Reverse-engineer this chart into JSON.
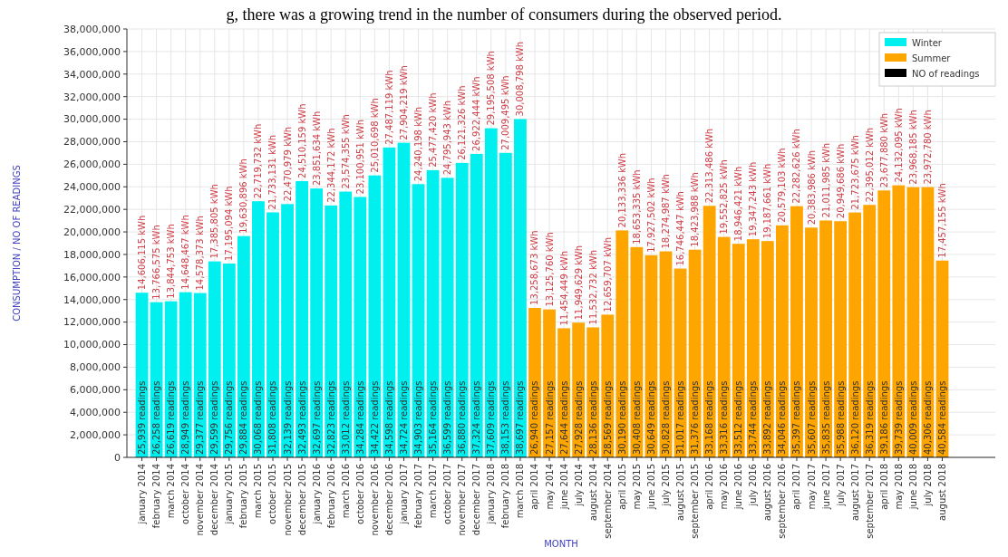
{
  "chart_data": {
    "type": "bar",
    "xlabel": "MONTH",
    "ylabel": "CONSUMPTION / NO OF READINGS",
    "annotations": [
      "g, there was a growing trend in the number of consumers during the  observed period."
    ],
    "categories": [
      "january 2014",
      "february 2014",
      "march 2014",
      "october 2014",
      "november 2014",
      "december 2014",
      "january 2015",
      "february 2015",
      "march 2015",
      "october 2015",
      "november 2015",
      "december 2015",
      "january 2016",
      "february 2016",
      "march 2016",
      "october 2016",
      "november 2016",
      "december 2016",
      "january 2017",
      "february 2017",
      "march 2017",
      "october 2017",
      "november 2017",
      "december 2017",
      "january 2018",
      "february 2018",
      "march 2018",
      "april 2014",
      "may 2014",
      "june 2014",
      "july 2014",
      "august 2014",
      "september 2014",
      "april 2015",
      "may 2015",
      "june 2015",
      "july 2015",
      "august 2015",
      "september 2015",
      "april 2016",
      "may 2016",
      "june 2016",
      "july 2016",
      "august 2016",
      "september 2016",
      "april 2017",
      "may 2017",
      "june 2017",
      "july 2017",
      "august 2017",
      "september 2017",
      "april 2018",
      "may 2018",
      "june 2018",
      "july 2018",
      "august 2018"
    ],
    "series": [
      {
        "name": "Winter",
        "color": "#00f0f0",
        "values": [
          14606115,
          13766575,
          13844753,
          14648467,
          14578373,
          17385805,
          17195094,
          19630896,
          22719732,
          21733131,
          22470979,
          24510159,
          23851634,
          22344172,
          23574355,
          23100951,
          25010698,
          27487119,
          27904219,
          24240198,
          25477420,
          24795943,
          26121326,
          26922444,
          29195508,
          27009495,
          30008798,
          null,
          null,
          null,
          null,
          null,
          null,
          null,
          null,
          null,
          null,
          null,
          null,
          null,
          null,
          null,
          null,
          null,
          null,
          null,
          null,
          null,
          null,
          null,
          null,
          null,
          null,
          null,
          null,
          null
        ],
        "value_labels": [
          "14,606,115 kWh",
          "13,766,575 kWh",
          "13,844,753 kWh",
          "14,648,467 kWh",
          "14,578,373 kWh",
          "17,385,805 kWh",
          "17,195,094 kWh",
          "19,630,896 kWh",
          "22,719,732 kWh",
          "21,733,131 kWh",
          "22,470,979 kWh",
          "24,510,159 kWh",
          "23,851,634 kWh",
          "22,344,172 kWh",
          "23,574,355 kWh",
          "23,100,951 kWh",
          "25,010,698 kWh",
          "27,487,119 kWh",
          "27,904,219 kWh",
          "24,240,198 kWh",
          "25,477,420 kWh",
          "24,795,943 kWh",
          "26,121,326 kWh",
          "26,922,444 kWh",
          "29,195,508 kWh",
          "27,009,495 kWh",
          "30,008,798 kWh",
          null,
          null,
          null,
          null,
          null,
          null,
          null,
          null,
          null,
          null,
          null,
          null,
          null,
          null,
          null,
          null,
          null,
          null,
          null,
          null,
          null,
          null,
          null,
          null,
          null,
          null,
          null,
          null,
          null
        ]
      },
      {
        "name": "Summer",
        "color": "#ffa500",
        "values": [
          null,
          null,
          null,
          null,
          null,
          null,
          null,
          null,
          null,
          null,
          null,
          null,
          null,
          null,
          null,
          null,
          null,
          null,
          null,
          null,
          null,
          null,
          null,
          null,
          null,
          null,
          null,
          13258673,
          13125760,
          11454449,
          11949629,
          11532732,
          12659707,
          20133336,
          18653335,
          17927502,
          18274987,
          16746447,
          18423988,
          22313486,
          19552825,
          18946421,
          19347243,
          19187661,
          20579103,
          22282626,
          20383986,
          21011985,
          20949686,
          21723675,
          22395012,
          23677880,
          24132095,
          23968185,
          23972780,
          17457155
        ],
        "value_labels": [
          null,
          null,
          null,
          null,
          null,
          null,
          null,
          null,
          null,
          null,
          null,
          null,
          null,
          null,
          null,
          null,
          null,
          null,
          null,
          null,
          null,
          null,
          null,
          null,
          null,
          null,
          null,
          "13,258,673 kWh",
          "13,125,760 kWh",
          "11,454,449 kWh",
          "11,949,629 kWh",
          "11,532,732 kWh",
          "12,659,707 kWh",
          "20,133,336 kWh",
          "18,653,335 kWh",
          "17,927,502 kWh",
          "18,274,987 kWh",
          "16,746,447 kWh",
          "18,423,988 kWh",
          "22,313,486 kWh",
          "19,552,825 kWh",
          "18,946,421 kWh",
          "19,347,243 kWh",
          "19,187,661 kWh",
          "20,579,103 kWh",
          "22,282,626 kWh",
          "20,383,986 kWh",
          "21,011,985 kWh",
          "20,949,686 kWh",
          "21,723,675 kWh",
          "22,395,012 kWh",
          "23,677,880 kWh",
          "24,132,095 kWh",
          "23,968,185 kWh",
          "23,972,780 kWh",
          "17,457,155 kWh"
        ]
      },
      {
        "name": "NO of readings",
        "color": "#000000",
        "values": [
          25939,
          26258,
          26619,
          28949,
          29377,
          29599,
          29756,
          29884,
          30068,
          31808,
          32139,
          32493,
          32697,
          32823,
          33012,
          34284,
          34422,
          34598,
          34724,
          34903,
          35164,
          36599,
          36880,
          37324,
          37609,
          38153,
          38697,
          26940,
          27157,
          27644,
          27928,
          28136,
          28569,
          30190,
          30408,
          30649,
          30828,
          31017,
          31376,
          33168,
          33316,
          33512,
          33744,
          33892,
          34046,
          35397,
          35607,
          35835,
          35988,
          36120,
          36319,
          39186,
          39739,
          40009,
          40306,
          40584
        ],
        "value_labels": [
          "25,939 readings",
          "26,258 readings",
          "26,619 readings",
          "28,949 readings",
          "29,377 readings",
          "29,599 readings",
          "29,756 readings",
          "29,884 readings",
          "30,068 readings",
          "31,808 readings",
          "32,139 readings",
          "32,493 readings",
          "32,697 readings",
          "32,823 readings",
          "33,012 readings",
          "34,284 readings",
          "34,422 readings",
          "34,598 readings",
          "34,724 readings",
          "34,903 readings",
          "35,164 readings",
          "36,599 readings",
          "36,880 readings",
          "37,324 readings",
          "37,609 readings",
          "38,153 readings",
          "38,697 readings",
          "26,940 readings",
          "27,157 readings",
          "27,644 readings",
          "27,928 readings",
          "28,136 readings",
          "28,569 readings",
          "30,190 readings",
          "30,408 readings",
          "30,649 readings",
          "30,828 readings",
          "31,017 readings",
          "31,376 readings",
          "33,168 readings",
          "33,316 readings",
          "33,512 readings",
          "33,744 readings",
          "33,892 readings",
          "34,046 readings",
          "35,397 readings",
          "35,607 readings",
          "35,835 readings",
          "35,988 readings",
          "36,120 readings",
          "36,319 readings",
          "39,186 readings",
          "39,739 readings",
          "40,009 readings",
          "40,306 readings",
          "40,584 readings"
        ]
      }
    ],
    "ylim": [
      0,
      38000000
    ],
    "yticks": [
      0,
      {
        "value": 2000000,
        "label": "2,000,000"
      },
      {
        "value": 4000000,
        "label": "4,000,000"
      },
      {
        "value": 6000000,
        "label": "6,000,000"
      },
      {
        "value": 8000000,
        "label": "8,000,000"
      },
      {
        "value": 10000000,
        "label": "10,000,000"
      },
      {
        "value": 12000000,
        "label": "12,000,000"
      },
      {
        "value": 14000000,
        "label": "14,000,000"
      },
      {
        "value": 16000000,
        "label": "16,000,000"
      },
      {
        "value": 18000000,
        "label": "18,000,000"
      },
      {
        "value": 20000000,
        "label": "20,000,000"
      },
      {
        "value": 22000000,
        "label": "22,000,000"
      },
      {
        "value": 24000000,
        "label": "24,000,000"
      },
      {
        "value": 26000000,
        "label": "26,000,000"
      },
      {
        "value": 28000000,
        "label": "28,000,000"
      },
      {
        "value": 30000000,
        "label": "30,000,000"
      },
      {
        "value": 32000000,
        "label": "32,000,000"
      },
      {
        "value": 34000000,
        "label": "34,000,000"
      },
      {
        "value": 36000000,
        "label": "36,000,000"
      },
      {
        "value": 38000000,
        "label": "38,000,000"
      }
    ],
    "grid": true,
    "legend": "top right"
  }
}
